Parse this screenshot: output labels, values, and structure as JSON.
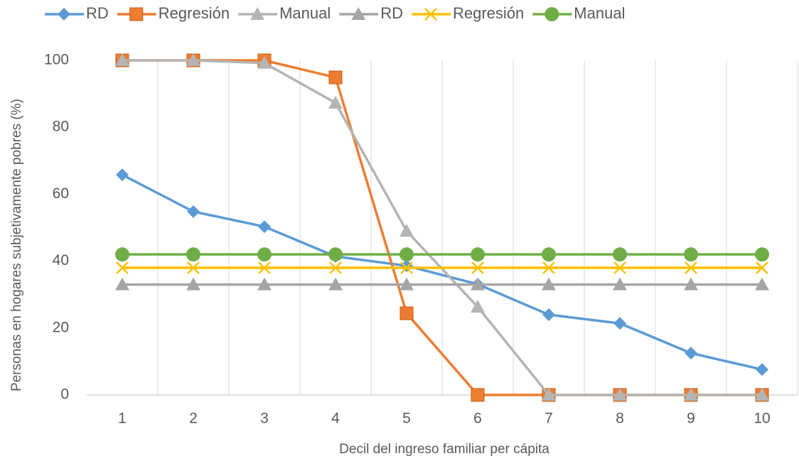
{
  "chart_data": {
    "type": "line",
    "x_label": "Decil del ingreso familiar per cápita",
    "y_label": "Personas en hogares subjetivamente pobres (%)",
    "categories": [
      "1",
      "2",
      "3",
      "4",
      "5",
      "6",
      "7",
      "8",
      "9",
      "10"
    ],
    "ylim": [
      0,
      100
    ],
    "yticks": [
      0,
      20,
      40,
      60,
      80,
      100
    ],
    "grid": "vertical",
    "legend": "top",
    "series": [
      {
        "name": "RD",
        "color": "#5b9bd5",
        "marker": "diamond",
        "values": [
          65.8,
          54.8,
          50.3,
          41.4,
          38.6,
          33.1,
          24,
          21.4,
          12.5,
          7.6
        ]
      },
      {
        "name": "Regresión",
        "color": "#ed7d31",
        "marker": "square",
        "values": [
          100,
          100,
          100,
          94.9,
          24.4,
          0,
          0,
          0,
          0,
          0
        ]
      },
      {
        "name": "Manual",
        "color": "#b4b4b4",
        "marker": "triangle",
        "values": [
          100,
          100,
          99.2,
          87.3,
          49,
          26.3,
          0,
          0,
          0,
          0
        ]
      },
      {
        "name": "RD",
        "color": "#a5a5a5",
        "marker": "triangle",
        "values": [
          33,
          33,
          33,
          33,
          33,
          33,
          33,
          33,
          33,
          33
        ]
      },
      {
        "name": "Regresión",
        "color": "#ffc000",
        "marker": "x",
        "values": [
          38,
          38,
          38,
          38,
          38,
          38,
          38,
          38,
          38,
          38
        ]
      },
      {
        "name": "Manual",
        "color": "#70ad47",
        "marker": "circle",
        "values": [
          42,
          42,
          42,
          42,
          42,
          42,
          42,
          42,
          42,
          42
        ]
      }
    ]
  }
}
